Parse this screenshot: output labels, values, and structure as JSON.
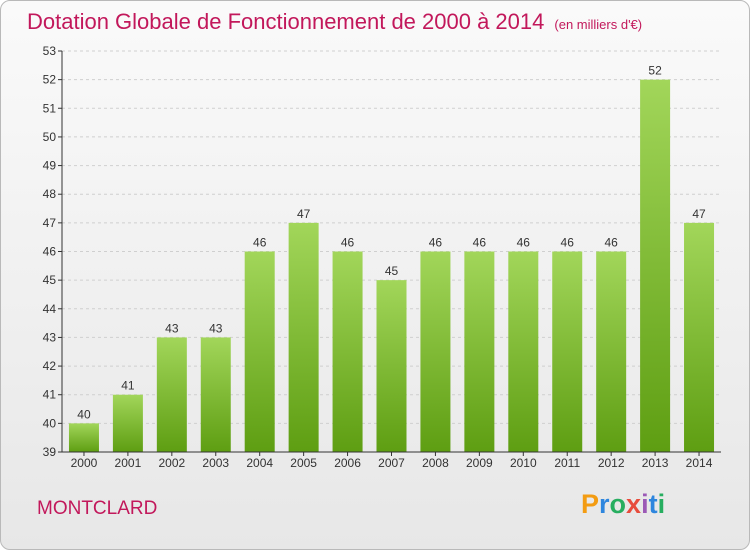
{
  "chart_data": {
    "type": "bar",
    "title": "Dotation Globale de Fonctionnement de 2000 à 2014",
    "subtitle": "(en milliers d'€)",
    "categories": [
      "2000",
      "2001",
      "2002",
      "2003",
      "2004",
      "2005",
      "2006",
      "2007",
      "2008",
      "2009",
      "2010",
      "2011",
      "2012",
      "2013",
      "2014"
    ],
    "values": [
      40,
      41,
      43,
      43,
      46,
      47,
      46,
      45,
      46,
      46,
      46,
      46,
      46,
      52,
      47
    ],
    "data_labels": [
      "40",
      "41",
      "43",
      "43",
      "46",
      "47",
      "46",
      "45",
      "46",
      "46",
      "46",
      "46",
      "46",
      "52",
      "47"
    ],
    "y_ticks": [
      "39",
      "40",
      "41",
      "42",
      "43",
      "44",
      "45",
      "46",
      "47",
      "48",
      "49",
      "50",
      "51",
      "52",
      "53"
    ],
    "ylim": [
      39,
      53
    ],
    "grid": true,
    "bar_color": "#7cbf2e"
  },
  "location": "MONTCLARD",
  "brand": {
    "letters": [
      "P",
      "r",
      "o",
      "x",
      "i",
      "t",
      "i"
    ],
    "colors": [
      "#f39c12",
      "#2e86de",
      "#27ae60",
      "#e74c3c",
      "#9b59b6",
      "#2e86de",
      "#27ae60"
    ]
  }
}
